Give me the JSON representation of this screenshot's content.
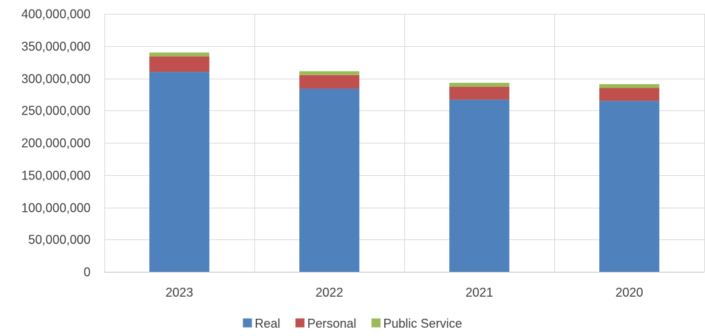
{
  "chart_data": {
    "type": "bar",
    "stacked": true,
    "title": "",
    "xlabel": "",
    "ylabel": "",
    "categories": [
      "2023",
      "2022",
      "2021",
      "2020"
    ],
    "series": [
      {
        "name": "Real",
        "color": "#4F81BD",
        "values": [
          310000000,
          284000000,
          267000000,
          265000000
        ]
      },
      {
        "name": "Personal",
        "color": "#C0504D",
        "values": [
          24000000,
          21000000,
          20000000,
          20000000
        ]
      },
      {
        "name": "Public Service",
        "color": "#9BBB59",
        "values": [
          6000000,
          6000000,
          6000000,
          6000000
        ]
      }
    ],
    "ylim": [
      0,
      400000000
    ],
    "yticks": [
      "0",
      "50,000,000",
      "100,000,000",
      "150,000,000",
      "200,000,000",
      "250,000,000",
      "300,000,000",
      "350,000,000",
      "400,000,000"
    ],
    "grid": true,
    "legend_position": "bottom"
  }
}
